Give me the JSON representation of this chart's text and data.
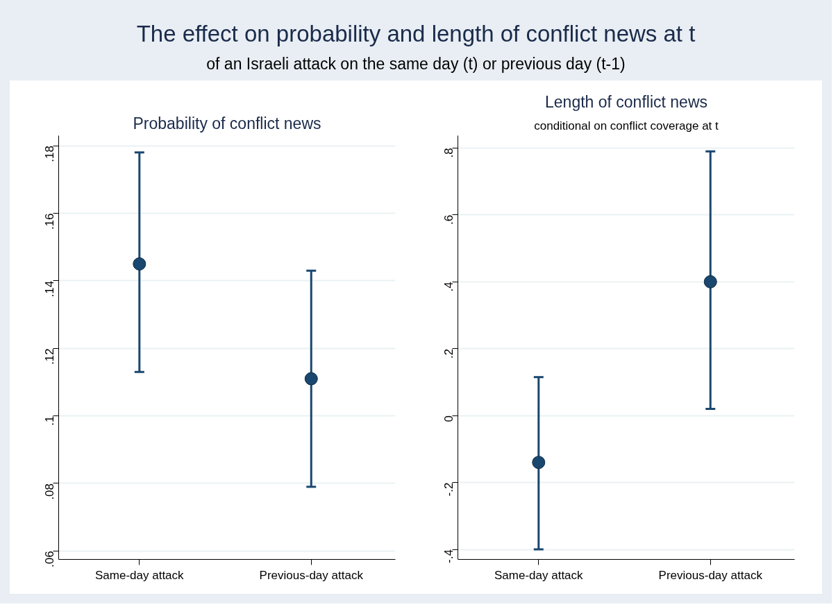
{
  "chart_data": [
    {
      "type": "other",
      "title": "The effect on probability and length of conflict news at t",
      "subtitle": "of an Israeli attack on the same day (t) or previous day (t-1)"
    },
    {
      "type": "scatter",
      "title": "Probability of conflict news",
      "categories": [
        "Same-day attack",
        "Previous-day attack"
      ],
      "series": [
        {
          "color": "#1a476f",
          "values": [
            0.145,
            0.111
          ],
          "errors": [
            [
              0.113,
              0.178
            ],
            [
              0.079,
              0.143
            ]
          ]
        }
      ],
      "ylim": [
        0.0575,
        0.183
      ],
      "yticks": [
        {
          "value": 0.06,
          "label": ".06"
        },
        {
          "value": 0.08,
          "label": ".08"
        },
        {
          "value": 0.1,
          "label": ".1"
        },
        {
          "value": 0.12,
          "label": ".12"
        },
        {
          "value": 0.14,
          "label": ".14"
        },
        {
          "value": 0.16,
          "label": ".16"
        },
        {
          "value": 0.18,
          "label": ".18"
        }
      ],
      "grid": "y",
      "marker": "circle"
    },
    {
      "type": "scatter",
      "title": "Length of conflict news",
      "subtitle": "conditional on conflict coverage at t",
      "categories": [
        "Same-day attack",
        "Previous-day attack"
      ],
      "series": [
        {
          "color": "#1a476f",
          "values": [
            -0.14,
            0.4
          ],
          "errors": [
            [
              -0.4,
              0.115
            ],
            [
              0.02,
              0.79
            ]
          ]
        }
      ],
      "ylim": [
        -0.43,
        0.837
      ],
      "yticks": [
        {
          "value": -0.4,
          "label": "-.4"
        },
        {
          "value": -0.2,
          "label": "-.2"
        },
        {
          "value": 0,
          "label": "0"
        },
        {
          "value": 0.2,
          "label": ".2"
        },
        {
          "value": 0.4,
          "label": ".4"
        },
        {
          "value": 0.6,
          "label": ".6"
        },
        {
          "value": 0.8,
          "label": ".8"
        }
      ],
      "grid": "y",
      "marker": "circle"
    }
  ]
}
